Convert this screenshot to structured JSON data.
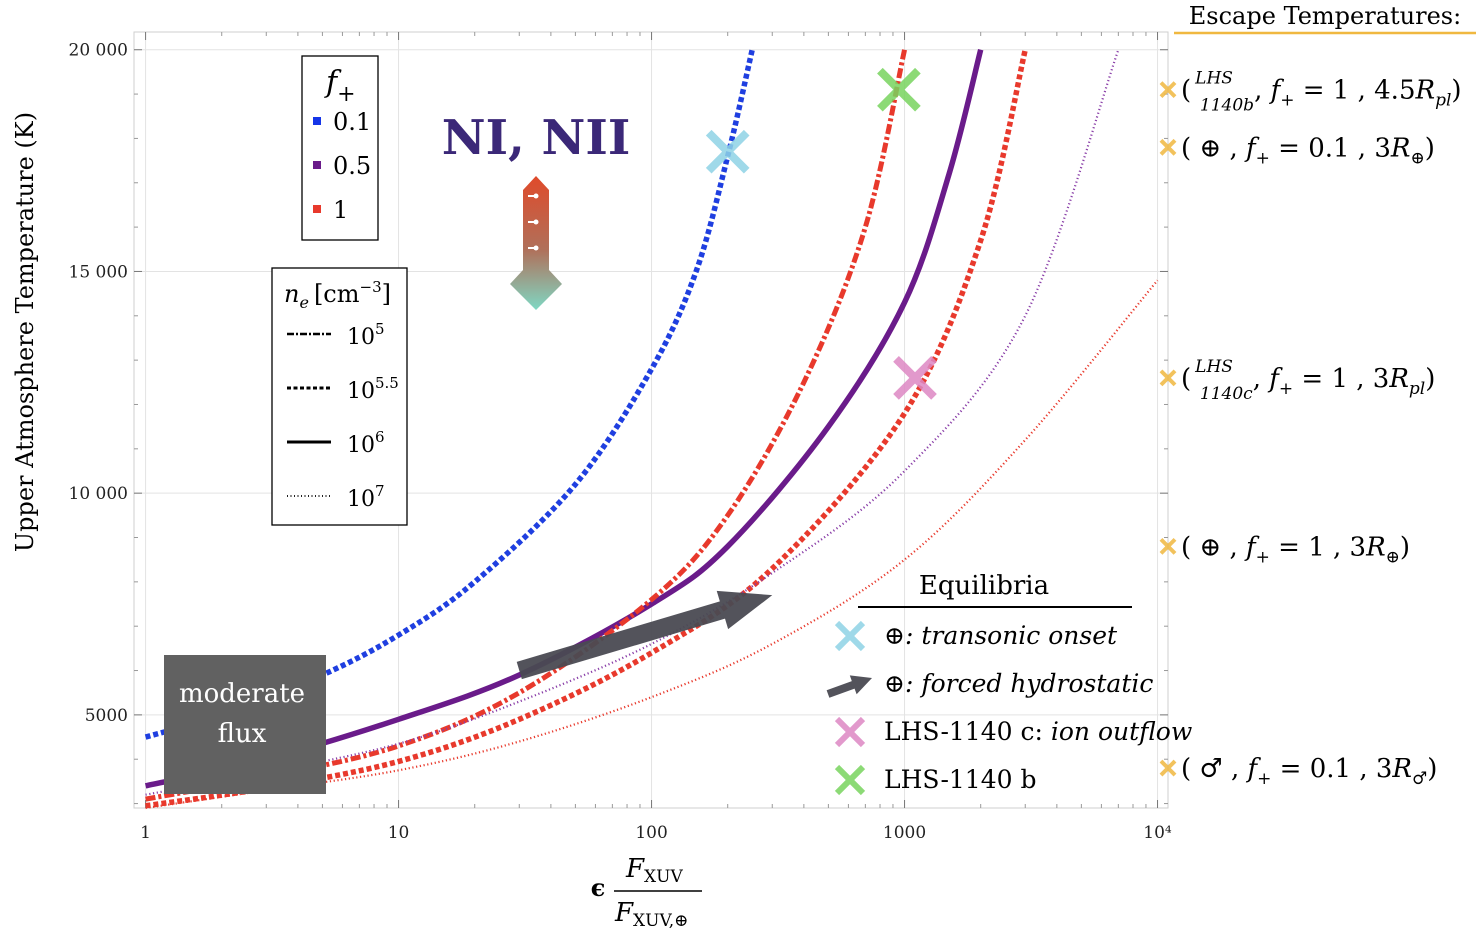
{
  "chart_data": {
    "type": "line",
    "title": "NI, NII",
    "xlabel": "ϵ F_XUV / F_XUV,⊕",
    "xlabel_num": "F",
    "xlabel_num_sub": "XUV",
    "xlabel_den": "F",
    "xlabel_den_sub": "XUV,⊕",
    "xlabel_eps": "ϵ",
    "ylabel": "Upper Atmosphere Temperature (K)",
    "xscale": "log",
    "xlim": [
      0.9,
      11000
    ],
    "ylim": [
      2900,
      20400
    ],
    "grid": true,
    "x_ticks": [
      {
        "v": 1,
        "label": "1"
      },
      {
        "v": 10,
        "label": "10"
      },
      {
        "v": 100,
        "label": "100"
      },
      {
        "v": 1000,
        "label": "1000"
      },
      {
        "v": 10000,
        "label": "10⁴"
      }
    ],
    "y_ticks": [
      {
        "v": 5000,
        "label": "5000"
      },
      {
        "v": 10000,
        "label": "10 000"
      },
      {
        "v": 15000,
        "label": "15 000"
      },
      {
        "v": 20000,
        "label": "20 000"
      }
    ],
    "series": [
      {
        "name": "f+=0.1, ne=10^5.5",
        "f_plus": "0.1",
        "ne": "10^5.5",
        "color": "#1f3fe0",
        "style": "dashed",
        "points": [
          [
            1,
            4500
          ],
          [
            2,
            5000
          ],
          [
            5,
            5900
          ],
          [
            10,
            6800
          ],
          [
            20,
            8000
          ],
          [
            50,
            10200
          ],
          [
            100,
            12800
          ],
          [
            150,
            15000
          ],
          [
            200,
            17600
          ],
          [
            250,
            20000
          ]
        ]
      },
      {
        "name": "f+=0.5, ne=10^6",
        "f_plus": "0.5",
        "ne": "10^6",
        "color": "#6a1b8a",
        "style": "solid",
        "points": [
          [
            1,
            3400
          ],
          [
            3,
            4000
          ],
          [
            10,
            4900
          ],
          [
            30,
            5900
          ],
          [
            100,
            7500
          ],
          [
            200,
            8800
          ],
          [
            500,
            11500
          ],
          [
            1000,
            14300
          ],
          [
            1500,
            17200
          ],
          [
            2000,
            20000
          ]
        ]
      },
      {
        "name": "f+=1, ne=10^5",
        "f_plus": "1",
        "ne": "10^5",
        "color": "#e8392c",
        "style": "dashdot",
        "points": [
          [
            1,
            3100
          ],
          [
            3,
            3600
          ],
          [
            10,
            4300
          ],
          [
            30,
            5500
          ],
          [
            100,
            7600
          ],
          [
            200,
            9500
          ],
          [
            400,
            12500
          ],
          [
            700,
            16000
          ],
          [
            1000,
            20000
          ]
        ]
      },
      {
        "name": "f+=1, ne=10^5.5",
        "f_plus": "1",
        "ne": "10^5.5",
        "color": "#e8392c",
        "style": "dashed",
        "points": [
          [
            1,
            2950
          ],
          [
            3,
            3350
          ],
          [
            10,
            3950
          ],
          [
            30,
            4900
          ],
          [
            100,
            6400
          ],
          [
            300,
            8300
          ],
          [
            1000,
            11800
          ],
          [
            2000,
            15700
          ],
          [
            3000,
            20000
          ]
        ]
      },
      {
        "name": "f+=0.5, ne=10^7",
        "f_plus": "0.5",
        "ne": "10^7",
        "color": "#8a3fa8",
        "style": "dotted",
        "points": [
          [
            1,
            3200
          ],
          [
            3,
            3700
          ],
          [
            10,
            4350
          ],
          [
            30,
            5300
          ],
          [
            100,
            6600
          ],
          [
            300,
            8200
          ],
          [
            1000,
            10500
          ],
          [
            3000,
            14000
          ],
          [
            7000,
            20000
          ]
        ]
      },
      {
        "name": "f+=1, ne=10^7",
        "f_plus": "1",
        "ne": "10^7",
        "color": "#e8392c",
        "style": "dotted",
        "points": [
          [
            1,
            2900
          ],
          [
            3,
            3300
          ],
          [
            10,
            3750
          ],
          [
            30,
            4400
          ],
          [
            100,
            5400
          ],
          [
            300,
            6600
          ],
          [
            1000,
            8500
          ],
          [
            3000,
            11200
          ],
          [
            10000,
            14800
          ]
        ]
      }
    ],
    "markers": [
      {
        "name": "transonic onset",
        "x": 200,
        "y": 17700,
        "color": "#8fd3e6"
      },
      {
        "name": "LHS-1140 b",
        "x": 950,
        "y": 19100,
        "color": "#78d45f"
      },
      {
        "name": "LHS-1140 c",
        "x": 1100,
        "y": 12600,
        "color": "#de88c4"
      }
    ],
    "arrow": {
      "name": "forced hydrostatic",
      "from": [
        30,
        6000
      ],
      "to": [
        300,
        7700
      ],
      "color": "#4a4a52"
    },
    "legend_f": {
      "title_f": "f",
      "title_sub": "+",
      "items": [
        {
          "label": "0.1",
          "color": "#1535e8"
        },
        {
          "label": "0.5",
          "color": "#6a1b8a"
        },
        {
          "label": "1",
          "color": "#e8392c"
        }
      ]
    },
    "legend_ne": {
      "title_n": "n",
      "title_sub": "e",
      "title_unit": "[cm",
      "title_exp": "−3",
      "title_close": "]",
      "items": [
        {
          "base": "10",
          "exp": "5",
          "style": "dashdot"
        },
        {
          "base": "10",
          "exp": "5.5",
          "style": "dashed"
        },
        {
          "base": "10",
          "exp": "6",
          "style": "solid"
        },
        {
          "base": "10",
          "exp": "7",
          "style": "dotted"
        }
      ]
    },
    "legend_eq": {
      "title": "Equilibria",
      "items": [
        {
          "prefix": "⊕",
          "text": ": transonic onset",
          "italic": true,
          "color": "#8fd3e6",
          "kind": "x"
        },
        {
          "prefix": "⊕",
          "text": ": forced hydrostatic",
          "italic": true,
          "color": "#4a4a52",
          "kind": "arrow"
        },
        {
          "prefix": "LHS-1140 c: ",
          "text": "ion outflow",
          "italic": true,
          "color": "#de88c4",
          "kind": "x"
        },
        {
          "prefix": "LHS-1140 b",
          "text": "",
          "italic": false,
          "color": "#78d45f",
          "kind": "x"
        }
      ]
    },
    "escape_title": "Escape Temperatures:",
    "escape_color": "#f0b840",
    "escape_temps": [
      {
        "y": 19100,
        "parts": [
          "(",
          "LHS",
          "1140b",
          ", ",
          "f",
          "+",
          " = 1 , 4.5",
          "R",
          "pl",
          ")"
        ],
        "kind": "lhs"
      },
      {
        "y": 17800,
        "parts": [
          "( ⊕ , ",
          "f",
          "+",
          " = 0.1 , 3",
          "R",
          "⊕",
          ")"
        ],
        "kind": "std"
      },
      {
        "y": 12600,
        "parts": [
          "(",
          "LHS",
          "1140c",
          ", ",
          "f",
          "+",
          " = 1 , 3",
          "R",
          "pl",
          ")"
        ],
        "kind": "lhs"
      },
      {
        "y": 8800,
        "parts": [
          "( ⊕ , ",
          "f",
          "+",
          " = 1 , 3",
          "R",
          "⊕",
          ")"
        ],
        "kind": "std"
      },
      {
        "y": 3800,
        "parts": [
          "( ♂ , ",
          "f",
          "+",
          " = 0.1 , 3",
          "R",
          "♂",
          ")"
        ],
        "kind": "std"
      }
    ],
    "moderate_box": {
      "line1": "moderate",
      "line2": "flux",
      "color": "#616161"
    },
    "title_color": "#3b2878"
  }
}
